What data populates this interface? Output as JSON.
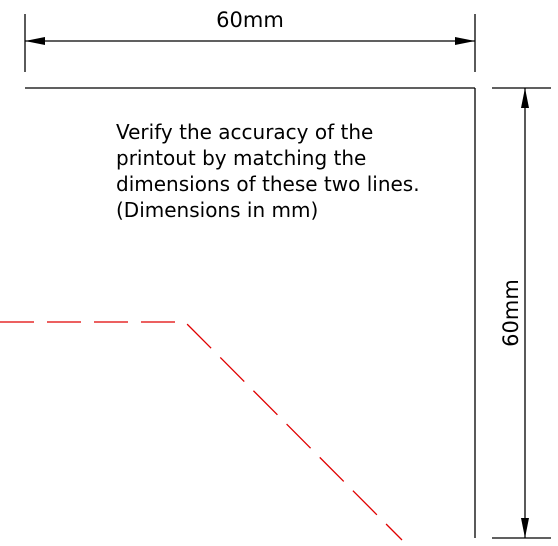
{
  "dimensions": {
    "horizontal_label": "60mm",
    "vertical_label": "60mm"
  },
  "note": {
    "lines": [
      "Verify the accuracy of the",
      "printout by matching the",
      "dimensions of these two lines.",
      "(Dimensions in mm)"
    ]
  },
  "colors": {
    "dimension_lines": "#000000",
    "hidden_line": "#e00000"
  }
}
